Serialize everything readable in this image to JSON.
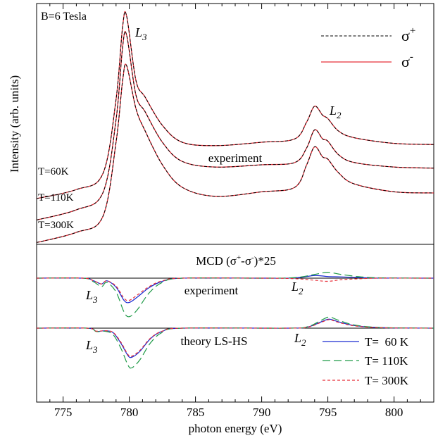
{
  "chart_data": {
    "type": "line",
    "x_range": [
      773,
      803
    ],
    "xticks": [
      775,
      780,
      785,
      790,
      795,
      800
    ],
    "xlabel": "photon energy (eV)",
    "ylabel": "Intensity (arb. units)",
    "grid": false,
    "top_panel": {
      "title": "B=6 Tesla",
      "annotation": "experiment",
      "edge_labels": {
        "L3": "L",
        "L3_sub": "3",
        "L2": "L",
        "L2_sub": "2"
      },
      "legend": {
        "placement": "top-right",
        "entries": [
          {
            "base": "σ",
            "sup": "+",
            "color": "#000000",
            "dash": true
          },
          {
            "base": "σ",
            "sup": "-",
            "color": "#e8303a",
            "dash": false
          }
        ]
      },
      "curve_labels": [
        "T=60K",
        "T=110K",
        "T=300K"
      ],
      "series": [
        {
          "temperature": "T=60K",
          "x": [
            773,
            776,
            778,
            779,
            779.5,
            779.8,
            780.5,
            781.2,
            782.5,
            784,
            786.5,
            790,
            792.5,
            793.4,
            794,
            794.6,
            795,
            795.8,
            797,
            800,
            803
          ],
          "y": [
            0.3,
            0.38,
            0.52,
            1.18,
            1.83,
            1.92,
            1.35,
            1.2,
            0.95,
            0.8,
            0.77,
            0.8,
            0.83,
            0.98,
            1.12,
            1.04,
            1.01,
            0.9,
            0.84,
            0.79,
            0.78
          ]
        },
        {
          "temperature": "T=110K",
          "x": [
            773,
            776,
            778,
            779,
            779.5,
            779.8,
            780.5,
            781.2,
            782.5,
            784,
            786.5,
            790,
            792.5,
            793.4,
            794,
            794.6,
            795,
            795.8,
            797,
            800,
            803
          ],
          "y": [
            0.11,
            0.2,
            0.35,
            1.0,
            1.65,
            1.75,
            1.22,
            1.07,
            0.8,
            0.63,
            0.58,
            0.6,
            0.62,
            0.75,
            0.91,
            0.83,
            0.81,
            0.69,
            0.62,
            0.58,
            0.57
          ]
        },
        {
          "temperature": "T=300K",
          "x": [
            773,
            776,
            778,
            779,
            779.5,
            779.8,
            780.5,
            781.2,
            782.5,
            784,
            786.5,
            790,
            792.5,
            793.4,
            794,
            794.6,
            795,
            795.8,
            797,
            800,
            803
          ],
          "y": [
            -0.09,
            0.0,
            0.14,
            0.8,
            1.35,
            1.48,
            1.1,
            0.9,
            0.6,
            0.4,
            0.32,
            0.36,
            0.4,
            0.6,
            0.76,
            0.67,
            0.65,
            0.53,
            0.43,
            0.36,
            0.35
          ]
        }
      ]
    },
    "bottom_panel": {
      "title_parts": [
        "MCD (σ",
        "+",
        "-σ",
        "-",
        ")*25"
      ],
      "annotations": [
        "experiment",
        "theory LS-HS"
      ],
      "edge_labels": {
        "L3": "L",
        "L3_sub": "3",
        "L2": "L",
        "L2_sub": "2"
      },
      "legend": {
        "placement": "bottom-right",
        "entries": [
          {
            "label": "T=  60 K",
            "color": "#1a2ad0",
            "dash": "solid"
          },
          {
            "label": "T= 110K",
            "color": "#1f9a47",
            "dash": "long"
          },
          {
            "label": "T= 300K",
            "color": "#e8303a",
            "dash": "short"
          }
        ]
      },
      "experiment_series": [
        {
          "name": "T=  60 K",
          "x": [
            773,
            776.5,
            777.3,
            777.9,
            778.3,
            779,
            779.6,
            780,
            780.6,
            781.5,
            782.5,
            784,
            790,
            792.5,
            794,
            795,
            796,
            797.5,
            799,
            803
          ],
          "y": [
            0,
            0,
            -0.25,
            -0.55,
            -0.25,
            -0.85,
            -2.1,
            -2.3,
            -1.8,
            -0.9,
            -0.3,
            0,
            0,
            0.02,
            0.25,
            0.15,
            0.12,
            0.05,
            0.01,
            0
          ]
        },
        {
          "name": "T= 110K",
          "x": [
            773,
            776.5,
            777.3,
            777.9,
            778.3,
            779,
            779.6,
            780,
            780.6,
            781.5,
            782.5,
            784,
            790,
            792.5,
            794,
            795,
            796,
            797.5,
            799,
            803
          ],
          "y": [
            0,
            0,
            -0.35,
            -0.8,
            -0.4,
            -1.3,
            -3.2,
            -3.65,
            -3.0,
            -1.4,
            -0.4,
            0,
            0,
            0.05,
            0.35,
            0.55,
            0.35,
            0.12,
            0.03,
            0
          ]
        },
        {
          "name": "T= 300K",
          "x": [
            773,
            776.5,
            777.3,
            777.9,
            778.3,
            779,
            779.6,
            780,
            780.6,
            781.5,
            782.5,
            784,
            790,
            792.5,
            794,
            795,
            796,
            797.5,
            799,
            803
          ],
          "y": [
            0,
            0,
            -0.25,
            -0.55,
            -0.25,
            -0.75,
            -1.9,
            -2.1,
            -1.6,
            -0.8,
            -0.25,
            0,
            0,
            -0.05,
            -0.2,
            -0.3,
            -0.15,
            -0.05,
            0,
            0
          ]
        }
      ],
      "theory_series": [
        {
          "name": "T=  60 K",
          "x": [
            773,
            776.8,
            777.5,
            778.2,
            778.8,
            779.4,
            779.9,
            780.2,
            780.8,
            781.6,
            782.5,
            784,
            792,
            793.5,
            794.5,
            795.1,
            795.8,
            797,
            799,
            803
          ],
          "y": [
            0,
            0,
            -0.3,
            -0.25,
            -0.45,
            -1.5,
            -2.6,
            -2.75,
            -2.2,
            -1.0,
            -0.3,
            0,
            0,
            0.12,
            0.6,
            0.85,
            0.6,
            0.25,
            0.05,
            0
          ]
        },
        {
          "name": "T= 110K",
          "x": [
            773,
            776.8,
            777.5,
            778.2,
            778.8,
            779.4,
            779.9,
            780.2,
            780.8,
            781.6,
            782.5,
            784,
            792,
            793.5,
            794.5,
            795.1,
            795.8,
            797,
            799,
            803
          ],
          "y": [
            0,
            0,
            -0.32,
            -0.3,
            -0.65,
            -2.0,
            -3.5,
            -3.75,
            -3.0,
            -1.4,
            -0.4,
            0,
            0,
            0.15,
            0.75,
            1.05,
            0.75,
            0.3,
            0.06,
            0
          ]
        },
        {
          "name": "T= 300K",
          "x": [
            773,
            776.8,
            777.5,
            778.2,
            778.8,
            779.4,
            779.9,
            780.2,
            780.8,
            781.6,
            782.5,
            784,
            792,
            793.5,
            794.5,
            795.1,
            795.8,
            797,
            799,
            803
          ],
          "y": [
            0,
            0,
            -0.28,
            -0.24,
            -0.42,
            -1.4,
            -2.5,
            -2.65,
            -2.1,
            -0.95,
            -0.28,
            0,
            0,
            0.1,
            0.55,
            0.8,
            0.55,
            0.22,
            0.04,
            0
          ]
        }
      ]
    }
  }
}
